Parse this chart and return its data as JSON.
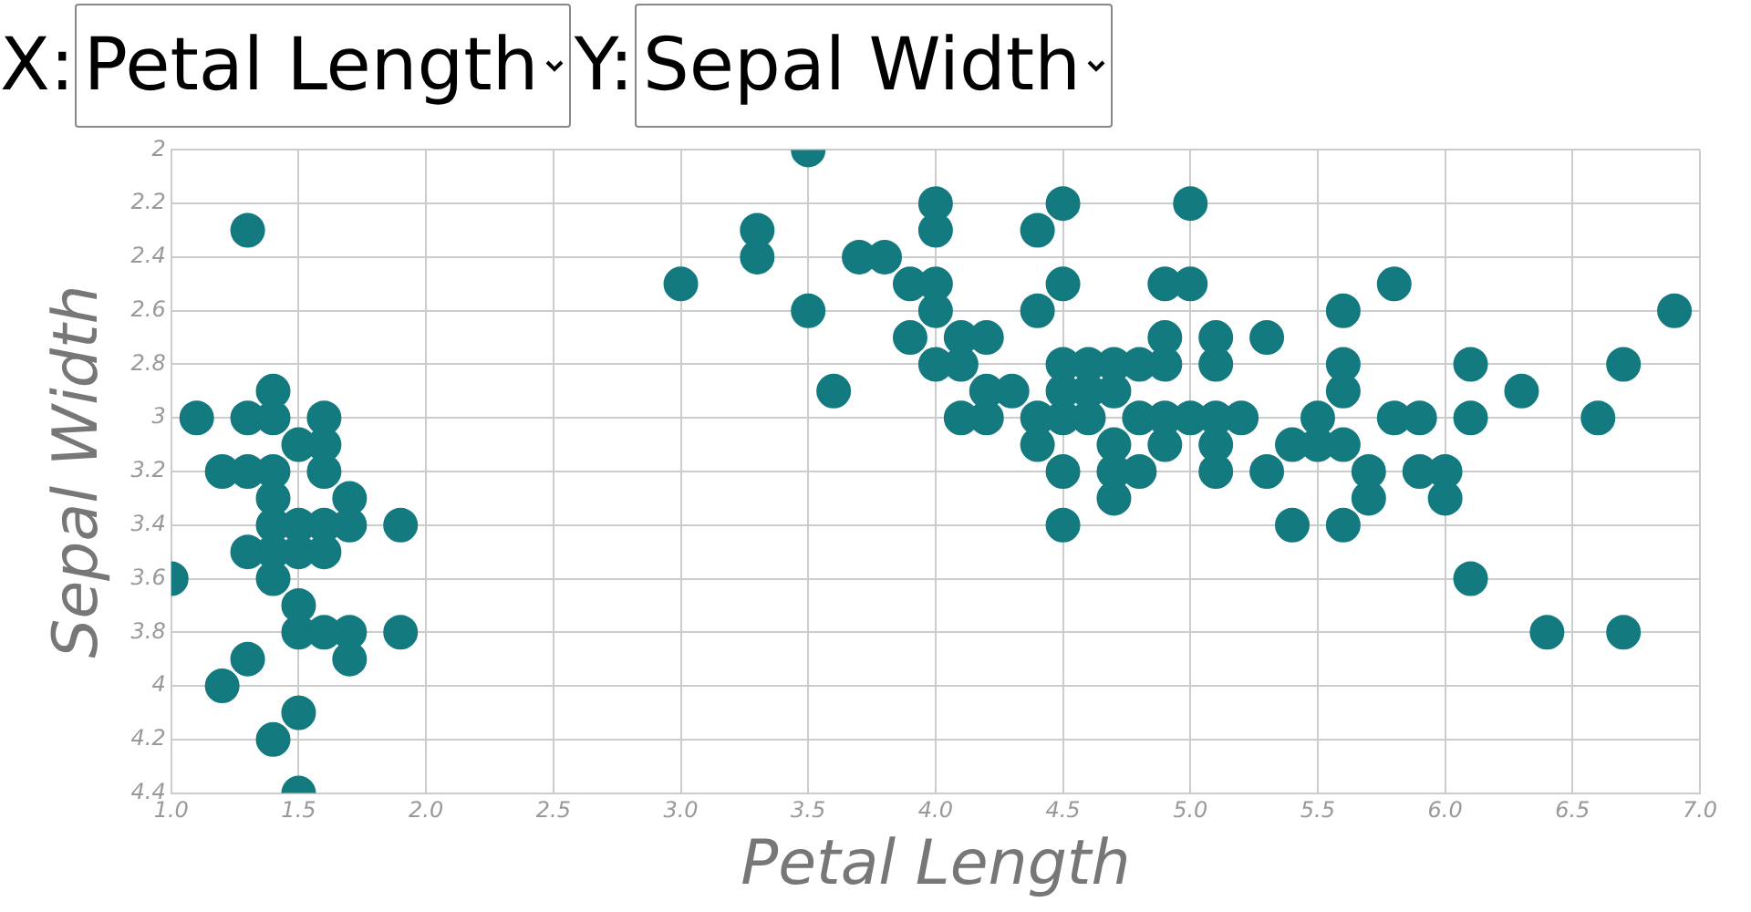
{
  "chart_data": {
    "type": "scatter",
    "xlabel": "Petal Length",
    "ylabel": "Sepal Width",
    "annotations": [
      "X:",
      "Y:"
    ],
    "x": [
      1.4,
      1.4,
      1.3,
      1.5,
      1.4,
      1.7,
      1.4,
      1.5,
      1.4,
      1.5,
      1.6,
      1.1,
      1.2,
      1.5,
      1.3,
      1.7,
      1.5,
      1.7,
      1.0,
      1.7,
      1.9,
      1.6,
      1.5,
      1.6,
      1.6,
      1.5,
      1.4,
      1.2,
      1.3,
      1.3,
      1.3,
      1.6,
      1.9,
      1.6,
      1.4,
      1.4,
      4.7,
      4.5,
      4.9,
      4.0,
      4.6,
      4.5,
      4.7,
      3.3,
      4.6,
      3.9,
      3.5,
      4.2,
      4.0,
      4.7,
      3.6,
      4.4,
      4.5,
      4.1,
      4.5,
      3.9,
      4.8,
      4.0,
      4.9,
      4.7,
      4.3,
      4.4,
      4.8,
      5.0,
      4.5,
      3.5,
      3.8,
      3.7,
      5.1,
      4.5,
      4.7,
      4.4,
      4.1,
      4.0,
      4.4,
      4.6,
      4.0,
      3.3,
      4.2,
      4.2,
      3.0,
      4.1,
      6.0,
      5.9,
      5.6,
      5.8,
      6.6,
      4.5,
      6.3,
      5.8,
      6.1,
      5.1,
      5.3,
      5.5,
      5.0,
      5.1,
      5.3,
      6.7,
      6.9,
      5.0,
      5.7,
      4.9,
      6.7,
      4.9,
      5.7,
      6.0,
      4.9,
      5.6,
      6.1,
      6.4,
      5.6,
      6.1,
      5.6,
      5.5,
      4.8,
      5.4,
      5.6,
      5.1,
      5.9,
      5.2,
      5.4,
      5.1
    ],
    "series": [
      {
        "color": "#137a7f",
        "values": [
          3.5,
          3.0,
          3.2,
          3.1,
          3.6,
          3.9,
          3.4,
          3.4,
          2.9,
          3.7,
          3.4,
          3.0,
          4.0,
          4.4,
          3.9,
          3.8,
          3.8,
          3.4,
          3.6,
          3.3,
          3.4,
          3.0,
          3.5,
          3.2,
          3.1,
          4.1,
          4.2,
          3.2,
          3.5,
          3.0,
          2.3,
          3.5,
          3.8,
          3.8,
          3.2,
          3.3,
          3.2,
          3.2,
          3.1,
          2.3,
          2.8,
          2.8,
          3.3,
          2.4,
          2.9,
          2.7,
          2.0,
          3.0,
          2.2,
          2.9,
          2.9,
          3.1,
          3.0,
          2.7,
          2.2,
          2.5,
          3.2,
          2.8,
          2.5,
          2.8,
          2.9,
          3.0,
          2.8,
          3.0,
          2.9,
          2.6,
          2.4,
          2.4,
          2.7,
          3.4,
          3.1,
          2.3,
          3.0,
          2.5,
          2.6,
          3.0,
          2.6,
          2.3,
          2.7,
          2.9,
          2.5,
          2.8,
          3.3,
          3.0,
          2.9,
          3.0,
          3.0,
          2.5,
          2.9,
          2.5,
          3.6,
          3.2,
          2.7,
          3.0,
          2.5,
          2.8,
          3.2,
          3.8,
          2.6,
          2.2,
          3.2,
          2.8,
          2.8,
          2.7,
          3.3,
          3.2,
          3.0,
          2.8,
          2.8,
          3.8,
          2.6,
          3.0,
          3.4,
          3.1,
          3.0,
          3.1,
          3.1,
          3.1,
          3.2,
          3.0,
          3.4,
          3.0
        ]
      }
    ],
    "xlim": [
      1.0,
      7.0
    ],
    "xticks": [
      {
        "value": 1.0,
        "label": "1.0"
      },
      1.5,
      {
        "value": 2.0,
        "label": "2.0"
      },
      2.5,
      {
        "value": 3.0,
        "label": "3.0"
      },
      3.5,
      {
        "value": 4.0,
        "label": "4.0"
      },
      4.5,
      {
        "value": 5.0,
        "label": "5.0"
      },
      5.5,
      {
        "value": 6.0,
        "label": "6.0"
      },
      6.5,
      {
        "value": 7.0,
        "label": "7.0"
      }
    ],
    "ylim": [
      4.4,
      2
    ],
    "yticks": [
      2,
      2.2,
      2.4,
      2.6,
      2.8,
      3,
      3.2,
      3.4,
      3.6,
      3.8,
      4,
      4.2,
      4.4
    ],
    "grid": true,
    "marker": "circle"
  }
}
